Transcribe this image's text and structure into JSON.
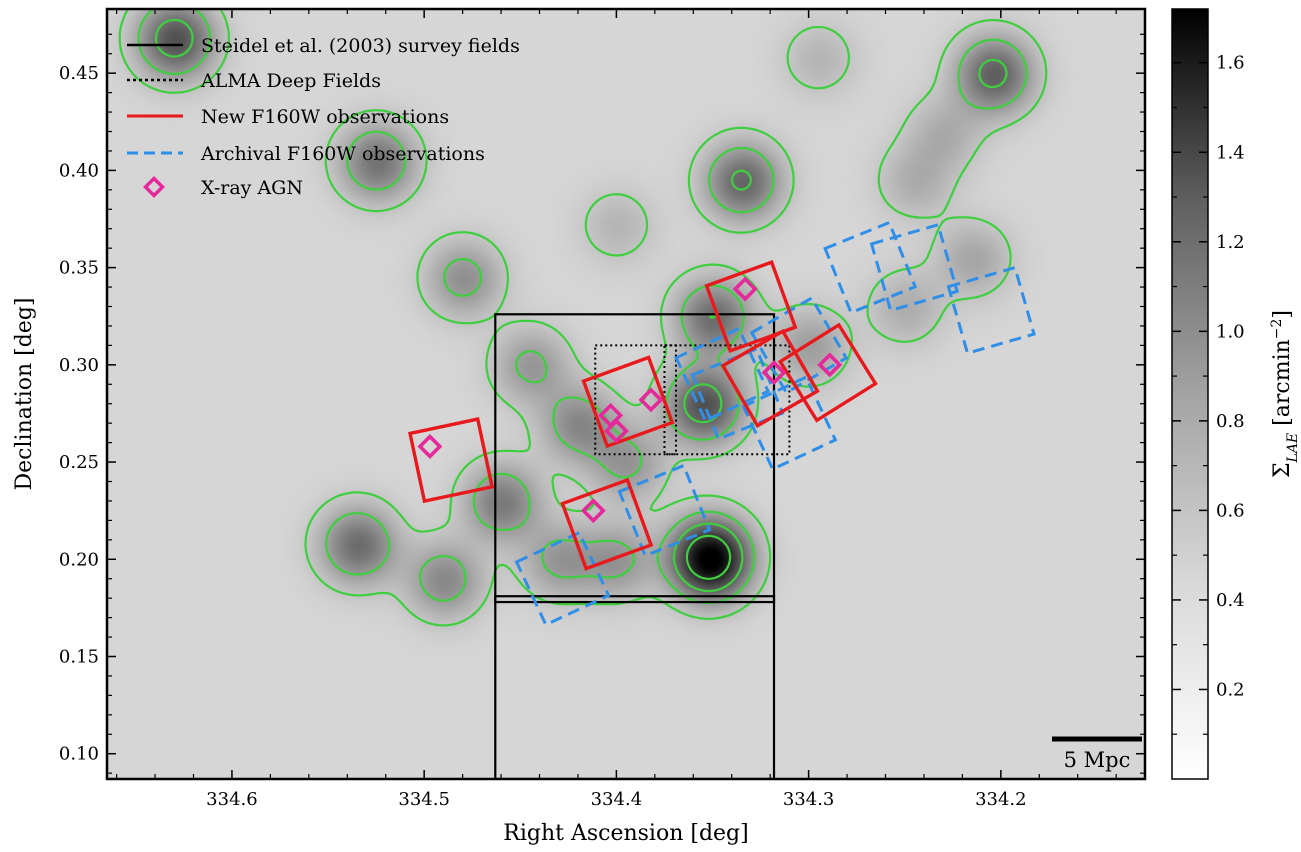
{
  "chart_data": {
    "type": "scatter",
    "xlabel": "Right Ascension [deg]",
    "ylabel": "Declination [deg]",
    "colorbar_label": "Σ_LAE [arcmin⁻²]",
    "colorbar_label_parts": {
      "symbol": "Σ",
      "sub": "LAE",
      "unit": " [arcmin",
      "sup": "−2",
      "close": "]"
    },
    "xlim": [
      334.665,
      334.125
    ],
    "ylim": [
      0.087,
      0.483
    ],
    "x_ticks": [
      {
        "value": 334.6,
        "label": "334.6"
      },
      {
        "value": 334.5,
        "label": "334.5"
      },
      {
        "value": 334.4,
        "label": "334.4"
      },
      {
        "value": 334.3,
        "label": "334.3"
      },
      {
        "value": 334.2,
        "label": "334.2"
      }
    ],
    "y_ticks": [
      {
        "value": 0.1,
        "label": "0.10"
      },
      {
        "value": 0.15,
        "label": "0.15"
      },
      {
        "value": 0.2,
        "label": "0.20"
      },
      {
        "value": 0.25,
        "label": "0.25"
      },
      {
        "value": 0.3,
        "label": "0.30"
      },
      {
        "value": 0.35,
        "label": "0.35"
      },
      {
        "value": 0.4,
        "label": "0.40"
      },
      {
        "value": 0.45,
        "label": "0.45"
      }
    ],
    "colorbar": {
      "lim": [
        0.0,
        1.72
      ],
      "ticks": [
        {
          "value": 0.2,
          "label": "0.2"
        },
        {
          "value": 0.4,
          "label": "0.4"
        },
        {
          "value": 0.6,
          "label": "0.6"
        },
        {
          "value": 0.8,
          "label": "0.8"
        },
        {
          "value": 1.0,
          "label": "1.0"
        },
        {
          "value": 1.2,
          "label": "1.2"
        },
        {
          "value": 1.4,
          "label": "1.4"
        },
        {
          "value": 1.6,
          "label": "1.6"
        }
      ]
    },
    "legend": [
      {
        "label": "Steidel et al. (2003) survey fields",
        "style": "solid-black"
      },
      {
        "label": "ALMA Deep Fields",
        "style": "dotted-black"
      },
      {
        "label": "New F160W observations",
        "style": "solid-red"
      },
      {
        "label": "Archival F160W observations",
        "style": "dashed-blue"
      },
      {
        "label": "X-ray AGN",
        "style": "diamond-magenta"
      }
    ],
    "scale_bar_label": "5 Mpc",
    "colors": {
      "steidel": "#000000",
      "alma": "#000000",
      "new_f160w": "#e8191c",
      "archival_f160w": "#2f8fe8",
      "xray_agn": "#e5289a",
      "contours": "#3ecf3e"
    },
    "density_peaks": [
      {
        "ra": 334.352,
        "dec": 0.201,
        "density": 1.72
      },
      {
        "ra": 334.63,
        "dec": 0.468,
        "density": 1.0
      },
      {
        "ra": 334.204,
        "dec": 0.45,
        "density": 0.9
      },
      {
        "ra": 334.525,
        "dec": 0.405,
        "density": 0.75
      },
      {
        "ra": 334.335,
        "dec": 0.395,
        "density": 0.85
      },
      {
        "ra": 334.35,
        "dec": 0.325,
        "density": 0.8
      },
      {
        "ra": 334.355,
        "dec": 0.28,
        "density": 1.0
      },
      {
        "ra": 334.48,
        "dec": 0.345,
        "density": 0.55
      },
      {
        "ra": 334.535,
        "dec": 0.208,
        "density": 0.8
      },
      {
        "ra": 334.46,
        "dec": 0.23,
        "density": 0.7
      },
      {
        "ra": 334.49,
        "dec": 0.19,
        "density": 0.6
      },
      {
        "ra": 334.42,
        "dec": 0.27,
        "density": 0.6
      },
      {
        "ra": 334.445,
        "dec": 0.3,
        "density": 0.5
      },
      {
        "ra": 334.395,
        "dec": 0.25,
        "density": 0.5
      },
      {
        "ra": 334.3,
        "dec": 0.31,
        "density": 0.45
      },
      {
        "ra": 334.43,
        "dec": 0.2,
        "density": 0.5
      },
      {
        "ra": 334.4,
        "dec": 0.2,
        "density": 0.5
      },
      {
        "ra": 334.25,
        "dec": 0.33,
        "density": 0.35
      },
      {
        "ra": 334.215,
        "dec": 0.355,
        "density": 0.4
      },
      {
        "ra": 334.245,
        "dec": 0.395,
        "density": 0.35
      },
      {
        "ra": 334.23,
        "dec": 0.42,
        "density": 0.35
      },
      {
        "ra": 334.4,
        "dec": 0.372,
        "density": 0.3
      },
      {
        "ra": 334.295,
        "dec": 0.458,
        "density": 0.3
      }
    ],
    "steidel_fields": [
      {
        "ra_min": 334.318,
        "ra_max": 334.463,
        "dec_min": 0.178,
        "dec_max": 0.326
      },
      {
        "ra_min": 334.318,
        "ra_max": 334.463,
        "dec_min": 0.087,
        "dec_max": 0.181
      }
    ],
    "alma_fields": [
      {
        "ra_min": 334.369,
        "ra_max": 334.411,
        "dec_min": 0.254,
        "dec_max": 0.31
      },
      {
        "ra_min": 334.31,
        "ra_max": 334.375,
        "dec_min": 0.254,
        "dec_max": 0.31
      }
    ],
    "new_f160w_fields": [
      {
        "center_ra": 334.486,
        "center_dec": 0.251,
        "angle": -12
      },
      {
        "center_ra": 334.394,
        "center_dec": 0.281,
        "angle": -20
      },
      {
        "center_ra": 334.405,
        "center_dec": 0.218,
        "angle": -20
      },
      {
        "center_ra": 334.33,
        "center_dec": 0.33,
        "angle": -20
      },
      {
        "center_ra": 334.32,
        "center_dec": 0.293,
        "angle": -30
      },
      {
        "center_ra": 334.29,
        "center_dec": 0.296,
        "angle": -32
      }
    ],
    "archival_f160w_fields": [
      {
        "center_ra": 334.268,
        "center_dec": 0.35,
        "angle": -22
      },
      {
        "center_ra": 334.245,
        "center_dec": 0.35,
        "angle": -16
      },
      {
        "center_ra": 334.205,
        "center_dec": 0.328,
        "angle": -16
      },
      {
        "center_ra": 334.305,
        "center_dec": 0.31,
        "angle": -30
      },
      {
        "center_ra": 334.337,
        "center_dec": 0.285,
        "angle": -22
      },
      {
        "center_ra": 334.345,
        "center_dec": 0.295,
        "angle": -25
      },
      {
        "center_ra": 334.31,
        "center_dec": 0.27,
        "angle": -25
      },
      {
        "center_ra": 334.375,
        "center_dec": 0.225,
        "angle": -22
      },
      {
        "center_ra": 334.428,
        "center_dec": 0.19,
        "angle": -25
      }
    ],
    "xray_agn": [
      {
        "ra": 334.497,
        "dec": 0.258
      },
      {
        "ra": 334.403,
        "dec": 0.274
      },
      {
        "ra": 334.4,
        "dec": 0.266
      },
      {
        "ra": 334.382,
        "dec": 0.282
      },
      {
        "ra": 334.412,
        "dec": 0.225
      },
      {
        "ra": 334.333,
        "dec": 0.339
      },
      {
        "ra": 334.318,
        "dec": 0.296
      },
      {
        "ra": 334.289,
        "dec": 0.3
      }
    ],
    "contour_levels": [
      0.3,
      0.55,
      0.9,
      1.35
    ]
  }
}
